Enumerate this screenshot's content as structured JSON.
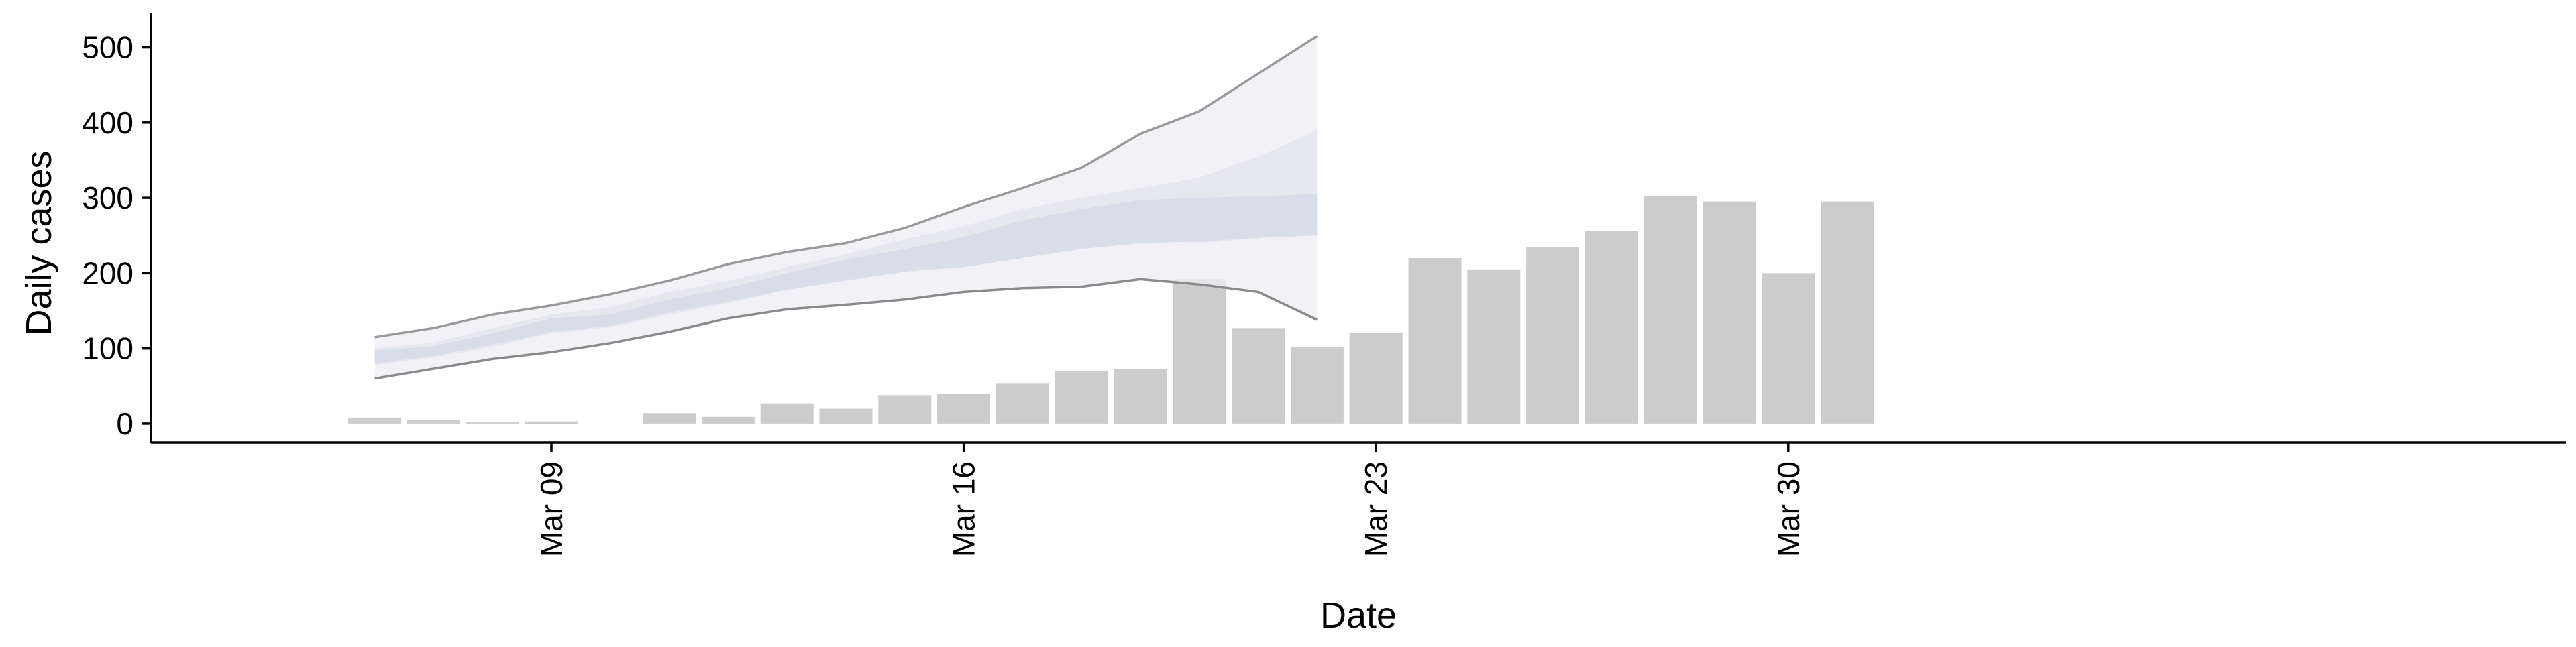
{
  "chart_data": {
    "type": "bar",
    "xlabel": "Date",
    "ylabel": "Daily cases",
    "ylim": [
      -25,
      545
    ],
    "yticks": [
      0,
      100,
      200,
      300,
      400,
      500
    ],
    "x_ticks": [
      {
        "date": "2020-03-09",
        "label": "Mar 09"
      },
      {
        "date": "2020-03-16",
        "label": "Mar 16"
      },
      {
        "date": "2020-03-23",
        "label": "Mar 23"
      },
      {
        "date": "2020-03-30",
        "label": "Mar 30"
      }
    ],
    "xlim": [
      "2020-03-04",
      "2020-04-02"
    ],
    "grid": false,
    "legend": "none",
    "series": [
      {
        "type": "bar",
        "color": "#cccccc",
        "dates": [
          "2020-03-06",
          "2020-03-07",
          "2020-03-08",
          "2020-03-09",
          "2020-03-10",
          "2020-03-11",
          "2020-03-12",
          "2020-03-13",
          "2020-03-14",
          "2020-03-15",
          "2020-03-16",
          "2020-03-17",
          "2020-03-18",
          "2020-03-19",
          "2020-03-20",
          "2020-03-21",
          "2020-03-22",
          "2020-03-23",
          "2020-03-24",
          "2020-03-25",
          "2020-03-26",
          "2020-03-27",
          "2020-03-28",
          "2020-03-29",
          "2020-03-30",
          "2020-03-31"
        ],
        "values": [
          8,
          5,
          2,
          3,
          0,
          14,
          9,
          27,
          20,
          38,
          40,
          54,
          70,
          73,
          192,
          127,
          102,
          121,
          220,
          205,
          235,
          256,
          302,
          295,
          200,
          295
        ]
      },
      {
        "type": "ribbon",
        "dates": [
          "2020-03-06",
          "2020-03-07",
          "2020-03-08",
          "2020-03-09",
          "2020-03-10",
          "2020-03-11",
          "2020-03-12",
          "2020-03-13",
          "2020-03-14",
          "2020-03-15",
          "2020-03-16",
          "2020-03-17",
          "2020-03-18",
          "2020-03-19",
          "2020-03-20",
          "2020-03-21",
          "2020-03-22"
        ],
        "outer_upper": [
          115,
          127,
          145,
          157,
          172,
          190,
          212,
          228,
          240,
          260,
          288,
          313,
          340,
          385,
          415,
          465,
          515
        ],
        "outer_lower": [
          60,
          73,
          86,
          95,
          107,
          122,
          140,
          152,
          158,
          165,
          175,
          180,
          182,
          192,
          185,
          175,
          138
        ],
        "mid_upper": [
          100,
          108,
          127,
          145,
          155,
          175,
          190,
          208,
          225,
          245,
          262,
          285,
          300,
          313,
          327,
          355,
          390
        ],
        "mid_lower": [
          78,
          88,
          102,
          120,
          128,
          145,
          160,
          178,
          195,
          210,
          220,
          232,
          240,
          245,
          240,
          246,
          258
        ],
        "inner_upper": [
          97,
          103,
          120,
          140,
          145,
          165,
          180,
          200,
          218,
          232,
          248,
          270,
          285,
          297,
          300,
          302,
          305
        ],
        "inner_lower": [
          80,
          90,
          105,
          122,
          130,
          148,
          162,
          178,
          190,
          202,
          208,
          220,
          232,
          240,
          242,
          247,
          250
        ]
      }
    ]
  }
}
